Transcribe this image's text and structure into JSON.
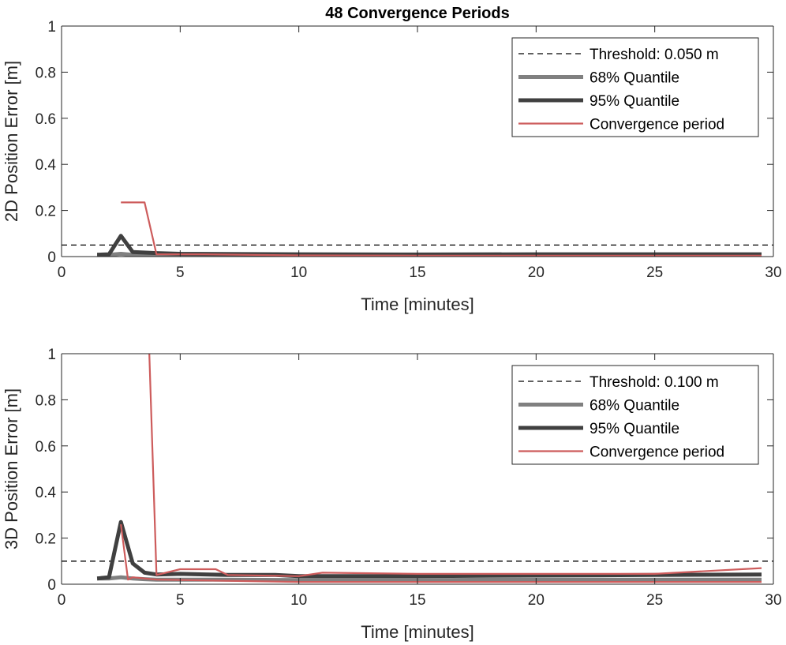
{
  "colors": {
    "threshold": "#000000",
    "q68": "#808080",
    "q95": "#404040",
    "convergence": "#cd5c5c",
    "axis": "#262626"
  },
  "chart_data": [
    {
      "type": "line",
      "title": "48 Convergence Periods",
      "xlabel": "Time [minutes]",
      "ylabel": "2D Position Error [m]",
      "xlim": [
        0,
        30
      ],
      "ylim": [
        0,
        1
      ],
      "xticks": [
        "0",
        "5",
        "10",
        "15",
        "20",
        "25",
        "30"
      ],
      "yticks": [
        "0",
        "0.2",
        "0.4",
        "0.6",
        "0.8",
        "1"
      ],
      "legend_position": "top-right",
      "threshold": {
        "label": "Threshold: 0.050 m",
        "value": 0.05
      },
      "series": [
        {
          "name": "68% Quantile",
          "x": [
            1.5,
            2.0,
            2.5,
            3.0,
            4.0,
            5.0,
            10.0,
            15.0,
            20.0,
            25.0,
            29.5
          ],
          "y": [
            0.008,
            0.008,
            0.012,
            0.008,
            0.007,
            0.006,
            0.006,
            0.006,
            0.006,
            0.006,
            0.006
          ]
        },
        {
          "name": "95% Quantile",
          "x": [
            1.5,
            2.0,
            2.5,
            3.0,
            4.0,
            5.0,
            10.0,
            15.0,
            20.0,
            25.0,
            29.5
          ],
          "y": [
            0.008,
            0.01,
            0.09,
            0.02,
            0.015,
            0.012,
            0.01,
            0.009,
            0.01,
            0.01,
            0.01
          ]
        },
        {
          "name": "Convergence period",
          "x": [
            2.5,
            3.5,
            4.0,
            6.0,
            10.0,
            15.0,
            20.0,
            25.0,
            29.5
          ],
          "y": [
            0.235,
            0.235,
            0.01,
            0.01,
            0.005,
            0.004,
            0.004,
            0.004,
            0.004
          ]
        }
      ]
    },
    {
      "type": "line",
      "title": "",
      "xlabel": "Time [minutes]",
      "ylabel": "3D Position Error [m]",
      "xlim": [
        0,
        30
      ],
      "ylim": [
        0,
        1
      ],
      "xticks": [
        "0",
        "5",
        "10",
        "15",
        "20",
        "25",
        "30"
      ],
      "yticks": [
        "0",
        "0.2",
        "0.4",
        "0.6",
        "0.8",
        "1"
      ],
      "legend_position": "top-right",
      "threshold": {
        "label": "Threshold: 0.100 m",
        "value": 0.1
      },
      "series": [
        {
          "name": "68% Quantile",
          "x": [
            1.5,
            2.0,
            2.5,
            3.0,
            3.5,
            4.0,
            5.0,
            7.0,
            10.0,
            15.0,
            20.0,
            25.0,
            29.5
          ],
          "y": [
            0.025,
            0.025,
            0.03,
            0.025,
            0.022,
            0.02,
            0.02,
            0.02,
            0.018,
            0.018,
            0.02,
            0.02,
            0.02
          ]
        },
        {
          "name": "95% Quantile",
          "x": [
            1.5,
            2.0,
            2.5,
            3.0,
            3.5,
            4.0,
            5.0,
            7.0,
            9.0,
            10.0,
            15.0,
            20.0,
            25.0,
            29.5
          ],
          "y": [
            0.025,
            0.03,
            0.27,
            0.09,
            0.05,
            0.042,
            0.045,
            0.04,
            0.04,
            0.035,
            0.035,
            0.038,
            0.04,
            0.042
          ]
        },
        {
          "name": "Convergence period",
          "x": [
            3.7,
            4.0,
            5.0,
            6.5,
            7.0,
            10.0,
            11.0,
            15.0,
            20.0,
            25.0,
            29.5
          ],
          "y": [
            1.0,
            0.04,
            0.065,
            0.065,
            0.04,
            0.035,
            0.05,
            0.045,
            0.045,
            0.045,
            0.07
          ]
        },
        {
          "name": "Convergence period",
          "x": [
            2.5,
            2.8,
            3.0,
            4.0,
            10.0,
            20.0,
            29.5
          ],
          "y": [
            0.26,
            0.02,
            0.03,
            0.02,
            0.01,
            0.01,
            0.01
          ]
        }
      ]
    }
  ]
}
